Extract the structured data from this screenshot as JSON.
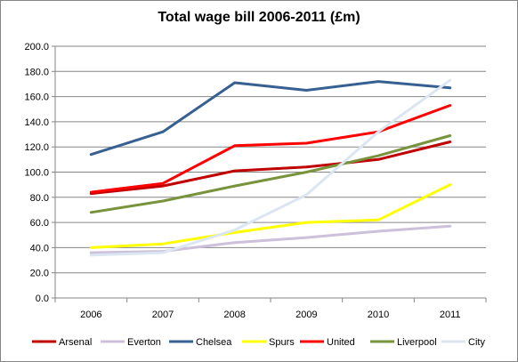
{
  "chart_data": {
    "type": "line",
    "title": "Total wage bill 2006-2011 (£m)",
    "xlabel": "",
    "ylabel": "",
    "categories": [
      "2006",
      "2007",
      "2008",
      "2009",
      "2010",
      "2011"
    ],
    "ylim": [
      0,
      200
    ],
    "ytick_labels": [
      "0.0",
      "20.0",
      "40.0",
      "60.0",
      "80.0",
      "100.0",
      "120.0",
      "140.0",
      "160.0",
      "180.0",
      "200.0"
    ],
    "grid": true,
    "legend_position": "bottom",
    "series": [
      {
        "name": "Arsenal",
        "color": "#c00000",
        "values": [
          83,
          89,
          101,
          104,
          110,
          124
        ]
      },
      {
        "name": "Everton",
        "color": "#ccc0da",
        "values": [
          36,
          37,
          44,
          48,
          53,
          57
        ]
      },
      {
        "name": "Chelsea",
        "color": "#376092",
        "values": [
          114,
          132,
          171,
          165,
          172,
          167
        ]
      },
      {
        "name": "Spurs",
        "color": "#ffff00",
        "values": [
          40,
          43,
          52,
          60,
          62,
          90
        ]
      },
      {
        "name": "United",
        "color": "#ff0000",
        "values": [
          84,
          91,
          121,
          123,
          132,
          153
        ]
      },
      {
        "name": "Liverpool",
        "color": "#77933c",
        "values": [
          68,
          77,
          89,
          100,
          113,
          129
        ]
      },
      {
        "name": "City",
        "color": "#dce6f2",
        "values": [
          34,
          36,
          54,
          82,
          132,
          173
        ]
      }
    ]
  }
}
